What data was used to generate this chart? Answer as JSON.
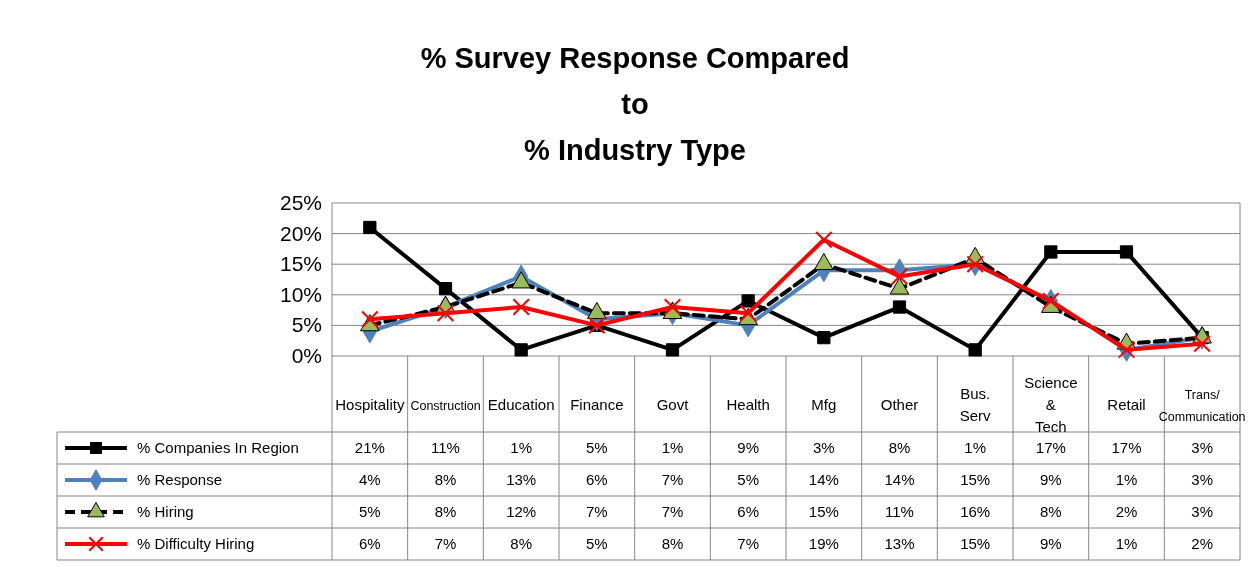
{
  "chart_data": {
    "type": "line",
    "title": "% Survey Response Compared\nto\n% Industry Type",
    "categories": [
      "Hospitality",
      "Construction",
      "Education",
      "Finance",
      "Govt",
      "Health",
      "Mfg",
      "Other",
      "Bus. Serv",
      "Science & Tech",
      "Retail",
      "Trans/Communication"
    ],
    "ylim": [
      0,
      25
    ],
    "yticks": [
      {
        "value": 0,
        "label": "0%"
      },
      {
        "value": 5,
        "label": "5%"
      },
      {
        "value": 10,
        "label": "10%"
      },
      {
        "value": 15,
        "label": "15%"
      },
      {
        "value": 20,
        "label": "20%"
      },
      {
        "value": 25,
        "label": "25%"
      }
    ],
    "grid": "y",
    "legend": "bottom",
    "series": [
      {
        "name": "% Companies In Region",
        "color": "#000000",
        "marker": "square",
        "line_style": "solid",
        "values": [
          21,
          11,
          1,
          5,
          1,
          9,
          3,
          8,
          1,
          17,
          17,
          3
        ],
        "value_labels": [
          "21%",
          "11%",
          "1%",
          "5%",
          "1%",
          "9%",
          "3%",
          "8%",
          "1%",
          "17%",
          "17%",
          "3%"
        ]
      },
      {
        "name": "% Response",
        "color": "#4f81bd",
        "marker": "diamond",
        "line_style": "solid",
        "values": [
          4,
          8,
          13,
          6,
          7,
          5,
          14,
          14,
          15,
          9,
          1,
          3
        ],
        "value_labels": [
          "4%",
          "8%",
          "13%",
          "6%",
          "7%",
          "5%",
          "14%",
          "14%",
          "15%",
          "9%",
          "1%",
          "3%"
        ]
      },
      {
        "name": "% Hiring",
        "color": "#000000",
        "marker": "triangle",
        "line_style": "dashed",
        "values": [
          5,
          8,
          12,
          7,
          7,
          6,
          15,
          11,
          16,
          8,
          2,
          3
        ],
        "value_labels": [
          "5%",
          "8%",
          "12%",
          "7%",
          "7%",
          "6%",
          "15%",
          "11%",
          "16%",
          "8%",
          "2%",
          "3%"
        ]
      },
      {
        "name": "% Difficulty Hiring",
        "color": "#ff0000",
        "marker": "cross",
        "line_style": "solid",
        "values": [
          6,
          7,
          8,
          5,
          8,
          7,
          19,
          13,
          15,
          9,
          1,
          2
        ],
        "value_labels": [
          "6%",
          "7%",
          "8%",
          "5%",
          "8%",
          "7%",
          "19%",
          "13%",
          "15%",
          "9%",
          "1%",
          "2%"
        ]
      }
    ]
  }
}
